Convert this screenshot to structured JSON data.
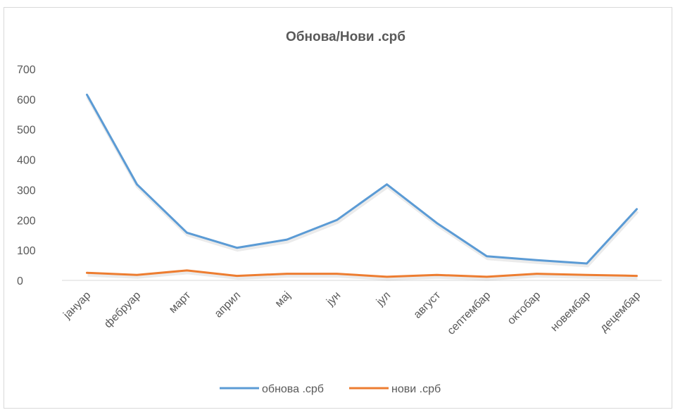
{
  "chart_data": {
    "type": "line",
    "title": "Обнова/Нови .срб",
    "xlabel": "",
    "ylabel": "",
    "categories": [
      "јануар",
      "фебруар",
      "март",
      "април",
      "мај",
      "јун",
      "јул",
      "август",
      "септембар",
      "октобар",
      "новембар",
      "децембар"
    ],
    "ylim": [
      0,
      700
    ],
    "yticks": [
      0,
      100,
      200,
      300,
      400,
      500,
      600,
      700
    ],
    "grid": false,
    "legend": "bottom",
    "series": [
      {
        "name": "обнова .срб",
        "color": "#5B9BD5",
        "values": [
          615,
          318,
          158,
          108,
          135,
          200,
          318,
          190,
          80,
          67,
          56,
          236
        ]
      },
      {
        "name": "нови .срб",
        "color": "#ED7D31",
        "values": [
          25,
          18,
          33,
          15,
          22,
          22,
          12,
          18,
          12,
          22,
          18,
          15
        ]
      }
    ]
  }
}
